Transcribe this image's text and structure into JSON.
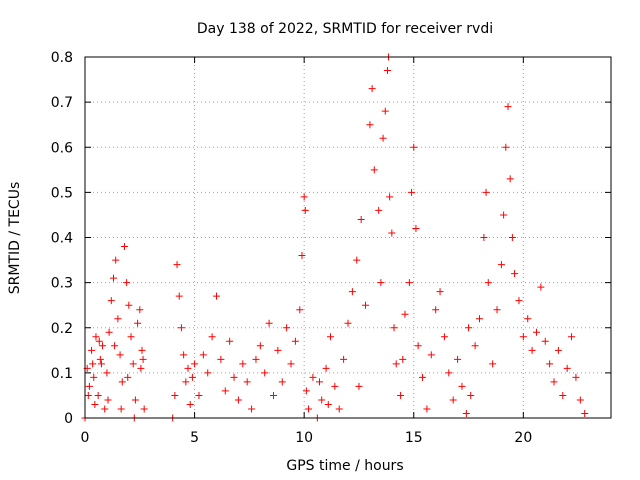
{
  "chart_data": {
    "type": "scatter",
    "title": "Day 138 of 2022, SRMTID for receiver rvdi",
    "xlabel": "GPS time / hours",
    "ylabel": "SRMTID / TECUs",
    "xlim": [
      0,
      24
    ],
    "ylim": [
      0,
      0.8
    ],
    "x_ticks": [
      0,
      5,
      10,
      15,
      20
    ],
    "y_ticks": [
      0,
      0.1,
      0.2,
      0.3,
      0.4,
      0.5,
      0.6,
      0.7,
      0.8
    ],
    "y_tick_labels": [
      "0",
      "0.1",
      "0.2",
      "0.3",
      "0.4",
      "0.5",
      "0.6",
      "0.7",
      "0.8"
    ],
    "grid": true,
    "marker": "+",
    "color": "#ff0000",
    "series": [
      {
        "name": "SRMTID",
        "points": [
          [
            0.0,
            0.0
          ],
          [
            0.1,
            0.11
          ],
          [
            0.2,
            0.07
          ],
          [
            0.3,
            0.15
          ],
          [
            0.4,
            0.09
          ],
          [
            0.5,
            0.18
          ],
          [
            0.6,
            0.05
          ],
          [
            0.7,
            0.13
          ],
          [
            0.8,
            0.16
          ],
          [
            0.9,
            0.02
          ],
          [
            1.0,
            0.1
          ],
          [
            1.1,
            0.19
          ],
          [
            1.2,
            0.26
          ],
          [
            1.3,
            0.31
          ],
          [
            1.4,
            0.35
          ],
          [
            1.5,
            0.22
          ],
          [
            1.6,
            0.14
          ],
          [
            1.7,
            0.08
          ],
          [
            1.8,
            0.38
          ],
          [
            1.9,
            0.3
          ],
          [
            2.0,
            0.25
          ],
          [
            2.1,
            0.18
          ],
          [
            2.2,
            0.12
          ],
          [
            2.3,
            0.04
          ],
          [
            2.4,
            0.21
          ],
          [
            2.5,
            0.24
          ],
          [
            2.6,
            0.15
          ],
          [
            2.7,
            0.02
          ],
          [
            0.15,
            0.05
          ],
          [
            0.45,
            0.03
          ],
          [
            0.75,
            0.12
          ],
          [
            1.05,
            0.04
          ],
          [
            1.35,
            0.16
          ],
          [
            1.65,
            0.02
          ],
          [
            1.95,
            0.09
          ],
          [
            2.25,
            0.0
          ],
          [
            2.55,
            0.11
          ],
          [
            2.65,
            0.13
          ],
          [
            0.35,
            0.12
          ],
          [
            0.65,
            0.17
          ],
          [
            4.0,
            0.0
          ],
          [
            4.1,
            0.05
          ],
          [
            4.2,
            0.34
          ],
          [
            4.3,
            0.27
          ],
          [
            4.4,
            0.2
          ],
          [
            4.5,
            0.14
          ],
          [
            4.6,
            0.08
          ],
          [
            4.7,
            0.11
          ],
          [
            4.8,
            0.03
          ],
          [
            4.9,
            0.09
          ],
          [
            5.0,
            0.12
          ],
          [
            5.2,
            0.05
          ],
          [
            5.4,
            0.14
          ],
          [
            5.6,
            0.1
          ],
          [
            5.8,
            0.18
          ],
          [
            6.0,
            0.27
          ],
          [
            6.2,
            0.13
          ],
          [
            6.4,
            0.06
          ],
          [
            6.6,
            0.17
          ],
          [
            6.8,
            0.09
          ],
          [
            7.0,
            0.04
          ],
          [
            7.2,
            0.12
          ],
          [
            7.4,
            0.08
          ],
          [
            7.6,
            0.02
          ],
          [
            7.8,
            0.13
          ],
          [
            8.0,
            0.16
          ],
          [
            8.2,
            0.1
          ],
          [
            8.4,
            0.21
          ],
          [
            8.6,
            0.05
          ],
          [
            8.8,
            0.15
          ],
          [
            9.0,
            0.08
          ],
          [
            9.2,
            0.2
          ],
          [
            9.4,
            0.12
          ],
          [
            9.6,
            0.17
          ],
          [
            9.8,
            0.24
          ],
          [
            9.9,
            0.36
          ],
          [
            10.0,
            0.49
          ],
          [
            10.05,
            0.46
          ],
          [
            10.1,
            0.06
          ],
          [
            10.2,
            0.02
          ],
          [
            10.4,
            0.09
          ],
          [
            10.6,
            0.0
          ],
          [
            10.8,
            0.04
          ],
          [
            11.0,
            0.11
          ],
          [
            11.2,
            0.18
          ],
          [
            11.4,
            0.07
          ],
          [
            11.6,
            0.02
          ],
          [
            11.8,
            0.13
          ],
          [
            12.0,
            0.21
          ],
          [
            12.2,
            0.28
          ],
          [
            12.4,
            0.35
          ],
          [
            12.6,
            0.44
          ],
          [
            12.8,
            0.25
          ],
          [
            13.0,
            0.65
          ],
          [
            13.1,
            0.73
          ],
          [
            13.2,
            0.55
          ],
          [
            13.4,
            0.46
          ],
          [
            13.5,
            0.3
          ],
          [
            13.6,
            0.62
          ],
          [
            13.7,
            0.68
          ],
          [
            13.8,
            0.77
          ],
          [
            13.85,
            0.8
          ],
          [
            13.9,
            0.49
          ],
          [
            14.0,
            0.41
          ],
          [
            14.1,
            0.2
          ],
          [
            14.2,
            0.12
          ],
          [
            14.4,
            0.05
          ],
          [
            14.6,
            0.23
          ],
          [
            14.8,
            0.3
          ],
          [
            14.9,
            0.5
          ],
          [
            15.0,
            0.6
          ],
          [
            15.1,
            0.42
          ],
          [
            15.2,
            0.16
          ],
          [
            15.4,
            0.09
          ],
          [
            15.6,
            0.02
          ],
          [
            15.8,
            0.14
          ],
          [
            16.0,
            0.24
          ],
          [
            16.2,
            0.28
          ],
          [
            16.4,
            0.18
          ],
          [
            16.6,
            0.1
          ],
          [
            16.8,
            0.04
          ],
          [
            17.0,
            0.13
          ],
          [
            17.2,
            0.07
          ],
          [
            17.4,
            0.01
          ],
          [
            17.6,
            0.05
          ],
          [
            17.8,
            0.16
          ],
          [
            18.0,
            0.22
          ],
          [
            18.2,
            0.4
          ],
          [
            18.3,
            0.5
          ],
          [
            18.4,
            0.3
          ],
          [
            18.6,
            0.12
          ],
          [
            18.8,
            0.24
          ],
          [
            19.0,
            0.34
          ],
          [
            19.1,
            0.45
          ],
          [
            19.2,
            0.6
          ],
          [
            19.3,
            0.69
          ],
          [
            19.4,
            0.53
          ],
          [
            19.5,
            0.4
          ],
          [
            19.6,
            0.32
          ],
          [
            19.8,
            0.26
          ],
          [
            20.0,
            0.18
          ],
          [
            20.2,
            0.22
          ],
          [
            20.4,
            0.15
          ],
          [
            20.6,
            0.19
          ],
          [
            20.8,
            0.29
          ],
          [
            21.0,
            0.17
          ],
          [
            21.2,
            0.12
          ],
          [
            21.4,
            0.08
          ],
          [
            21.6,
            0.15
          ],
          [
            21.8,
            0.05
          ],
          [
            22.0,
            0.11
          ],
          [
            22.2,
            0.18
          ],
          [
            22.4,
            0.09
          ],
          [
            22.6,
            0.04
          ],
          [
            22.8,
            0.01
          ],
          [
            11.1,
            0.03
          ],
          [
            10.7,
            0.08
          ],
          [
            12.5,
            0.07
          ],
          [
            14.5,
            0.13
          ],
          [
            17.5,
            0.2
          ]
        ]
      }
    ]
  }
}
